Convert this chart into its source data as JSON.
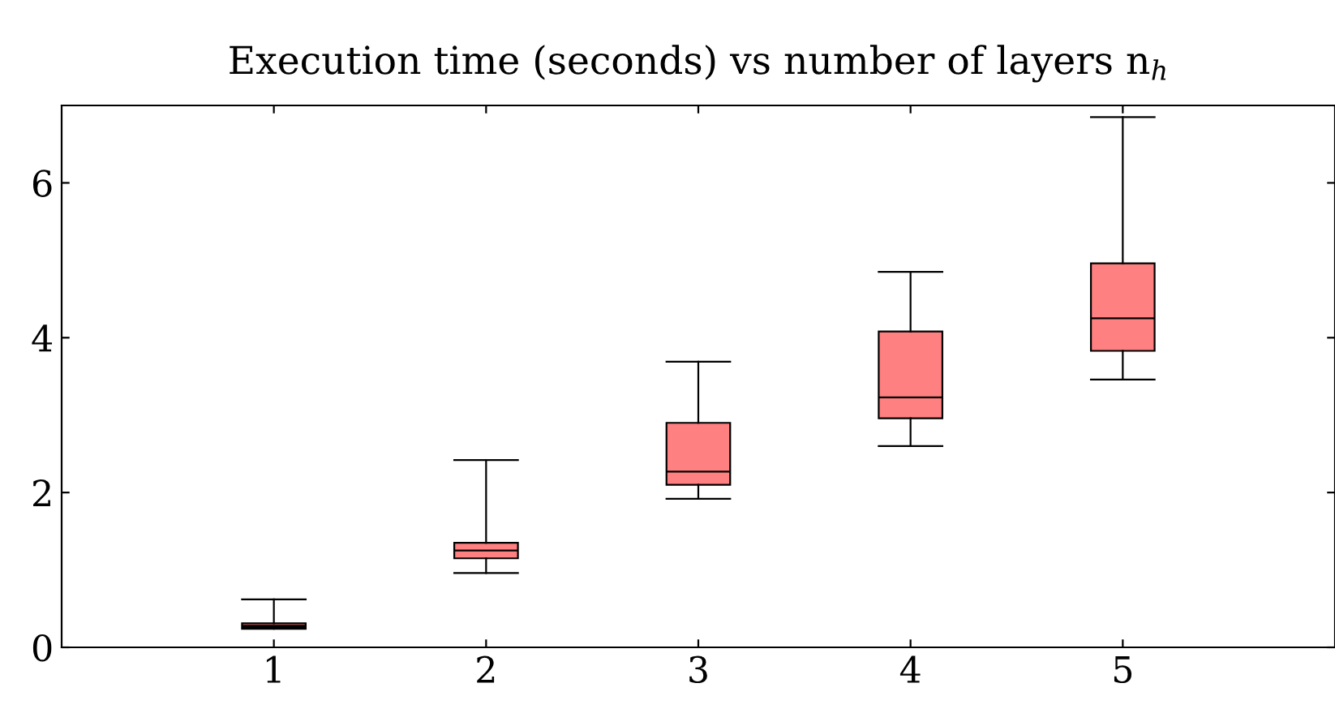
{
  "chart_data": {
    "type": "box",
    "title": "Execution time (seconds) vs number of layers n$_{h}$",
    "x": [
      1,
      2,
      3,
      4,
      5
    ],
    "color": "#ff8080",
    "boxes": [
      {
        "low": 0.24,
        "q1": 0.26,
        "median": 0.28,
        "q3": 0.31,
        "high": 0.62
      },
      {
        "low": 0.96,
        "q1": 1.15,
        "median": 1.25,
        "q3": 1.35,
        "high": 2.42
      },
      {
        "low": 1.92,
        "q1": 2.1,
        "median": 2.27,
        "q3": 2.9,
        "high": 3.69
      },
      {
        "low": 2.6,
        "q1": 2.96,
        "median": 3.23,
        "q3": 4.08,
        "high": 4.85
      },
      {
        "low": 3.46,
        "q1": 3.83,
        "median": 4.25,
        "q3": 4.96,
        "high": 6.85
      }
    ],
    "xlim": [
      0,
      6
    ],
    "xticks": [
      1,
      2,
      3,
      4,
      5
    ],
    "ylim": [
      0,
      7
    ],
    "yticks": [
      0,
      2,
      4,
      6
    ],
    "grid": false
  }
}
